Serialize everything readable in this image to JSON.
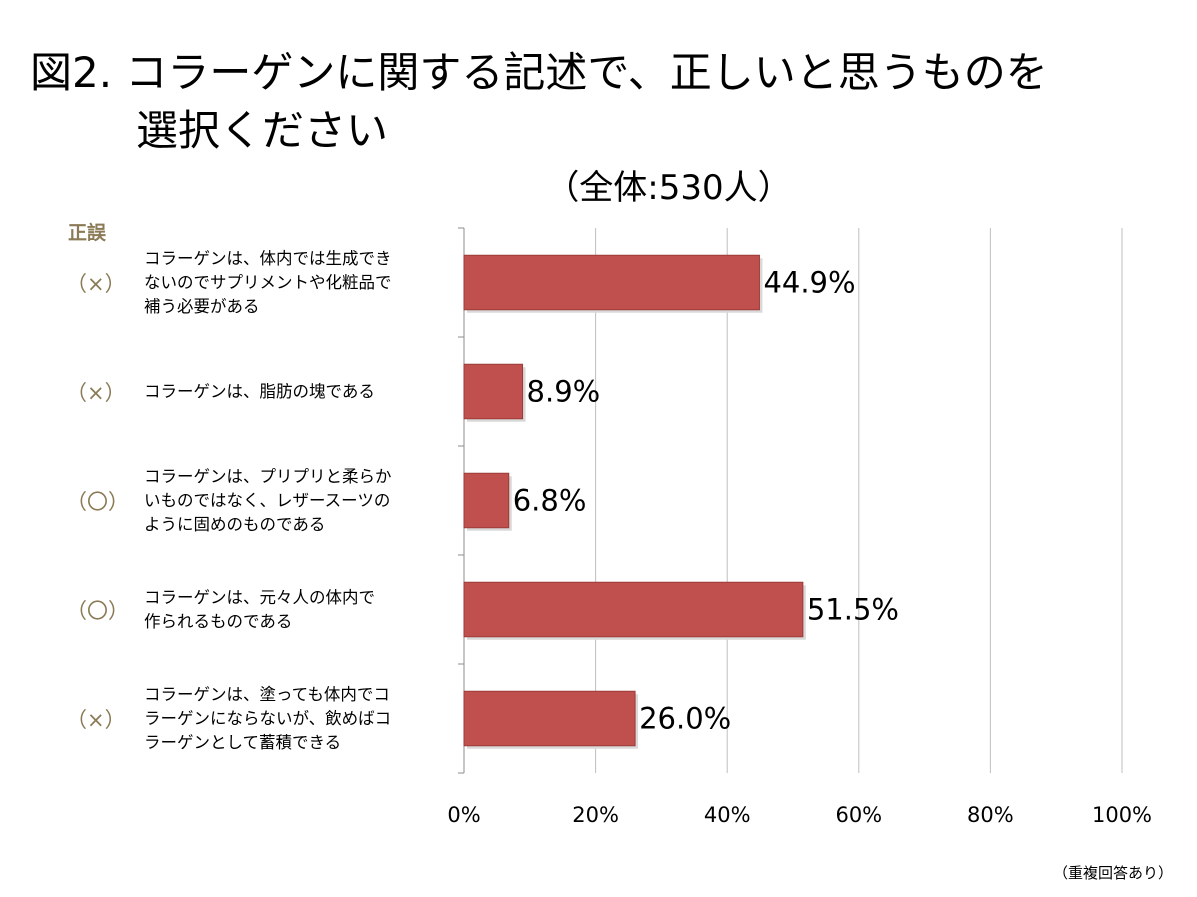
{
  "title": {
    "line1": "図2. コラーゲンに関する記述で、正しいと思うものを",
    "line2": "選択ください"
  },
  "subtitle": "（全体:530人）",
  "column_header": "正誤",
  "footnote": "（重複回答あり）",
  "colors": {
    "bar": "#c0504d",
    "bar_edge": "#9b3b38",
    "grid": "#bfbfbf",
    "mark": "#8a7a55"
  },
  "chart_data": {
    "type": "bar",
    "orientation": "horizontal",
    "categories": [
      "コラーゲンは、体内では生成できないのでサプリメントや化粧品で補う必要がある",
      "コラーゲンは、脂肪の塊である",
      "コラーゲンは、プリプリと柔らかいものではなく、レザースーツのように固めのものである",
      "コラーゲンは、元々人の体内で作られるものである",
      "コラーゲンは、塗っても体内でコラーゲンにならないが、飲めばコラーゲンとして蓄積できる"
    ],
    "category_lines": [
      [
        "コラーゲンは、体内では生成でき",
        "ないのでサプリメントや化粧品で",
        "補う必要がある"
      ],
      [
        "コラーゲンは、脂肪の塊である"
      ],
      [
        "コラーゲンは、プリプリと柔らか",
        "いものではなく、レザースーツの",
        "ように固めのものである"
      ],
      [
        "コラーゲンは、元々人の体内で",
        "作られるものである"
      ],
      [
        "コラーゲンは、塗っても体内でコ",
        "ラーゲンにならないが、飲めばコ",
        "ラーゲンとして蓄積できる"
      ]
    ],
    "marks": [
      "（×）",
      "（×）",
      "（〇）",
      "（〇）",
      "（×）"
    ],
    "values": [
      44.9,
      8.9,
      6.8,
      51.5,
      26.0
    ],
    "data_labels": [
      "44.9%",
      "8.9%",
      "6.8%",
      "51.5%",
      "26.0%"
    ],
    "xlim": [
      0,
      100
    ],
    "xticks": [
      0,
      20,
      40,
      60,
      80,
      100
    ],
    "xtick_labels": [
      "0%",
      "20%",
      "40%",
      "60%",
      "80%",
      "100%"
    ],
    "grid": true,
    "legend": "none"
  }
}
